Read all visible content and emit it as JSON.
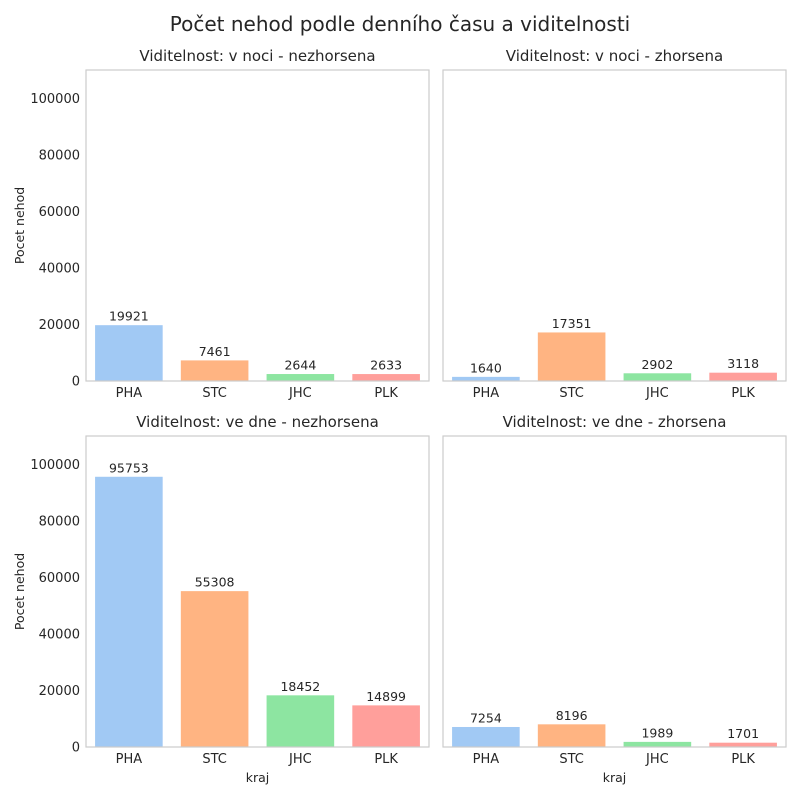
{
  "chart_data": {
    "type": "bar",
    "title": "Počet nehod podle denního času a viditelnosti",
    "xlabel": "kraj",
    "ylabel": "Pocet nehod",
    "ylim": [
      0,
      110000
    ],
    "yticks": [
      "0",
      "20000",
      "40000",
      "60000",
      "80000",
      "100000"
    ],
    "ytick_values": [
      0,
      20000,
      40000,
      60000,
      80000,
      100000
    ],
    "categories": [
      "PHA",
      "STC",
      "JHC",
      "PLK"
    ],
    "colors": [
      "#a1c9f4",
      "#ffb482",
      "#8de5a1",
      "#ff9f9b"
    ],
    "grid": false,
    "panels": [
      {
        "title": "Viditelnost: v noci - nezhorsena",
        "values": [
          19921,
          7461,
          2644,
          2633
        ]
      },
      {
        "title": "Viditelnost: v noci - zhorsena",
        "values": [
          1640,
          17351,
          2902,
          3118
        ]
      },
      {
        "title": "Viditelnost: ve dne - nezhorsena",
        "values": [
          95753,
          55308,
          18452,
          14899
        ]
      },
      {
        "title": "Viditelnost: ve dne - zhorsena",
        "values": [
          7254,
          8196,
          1989,
          1701
        ]
      }
    ]
  }
}
